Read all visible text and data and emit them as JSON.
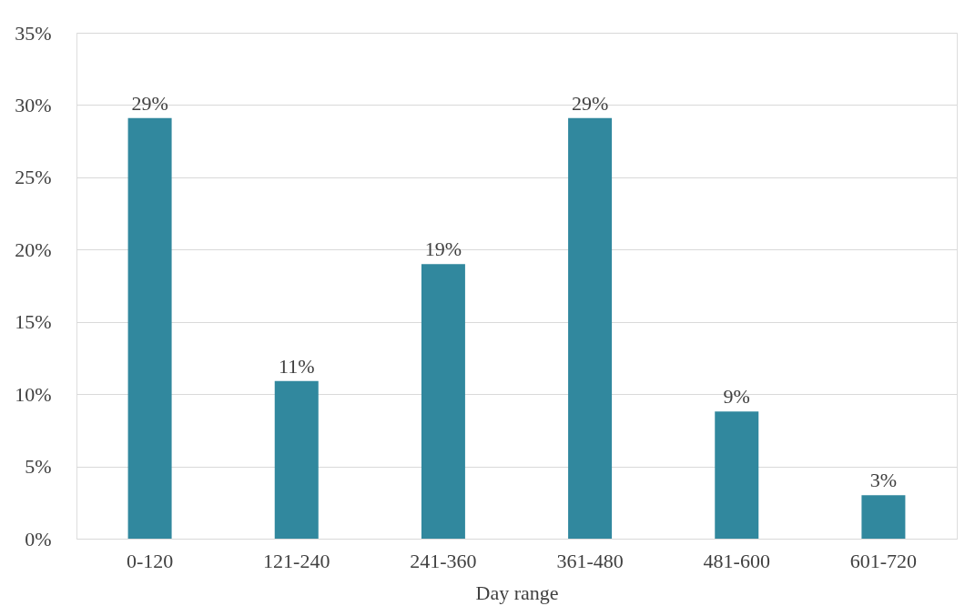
{
  "chart_data": {
    "type": "bar",
    "xlabel": "Day range",
    "categories": [
      "0-120",
      "121-240",
      "241-360",
      "361-480",
      "481-600",
      "601-720"
    ],
    "values": [
      29.1,
      10.9,
      19,
      29.1,
      8.8,
      3
    ],
    "value_labels": [
      "29%",
      "11%",
      "19%",
      "29%",
      "9%",
      "3%"
    ],
    "color": "#31889e",
    "ylim": [
      0,
      35
    ],
    "yticks": [
      {
        "value": 0,
        "label": "0%"
      },
      {
        "value": 5,
        "label": "5%"
      },
      {
        "value": 10,
        "label": "10%"
      },
      {
        "value": 15,
        "label": "15%"
      },
      {
        "value": 20,
        "label": "20%"
      },
      {
        "value": 25,
        "label": "25%"
      },
      {
        "value": 30,
        "label": "30%"
      },
      {
        "value": 35,
        "label": "35%"
      }
    ],
    "grid": "y"
  }
}
